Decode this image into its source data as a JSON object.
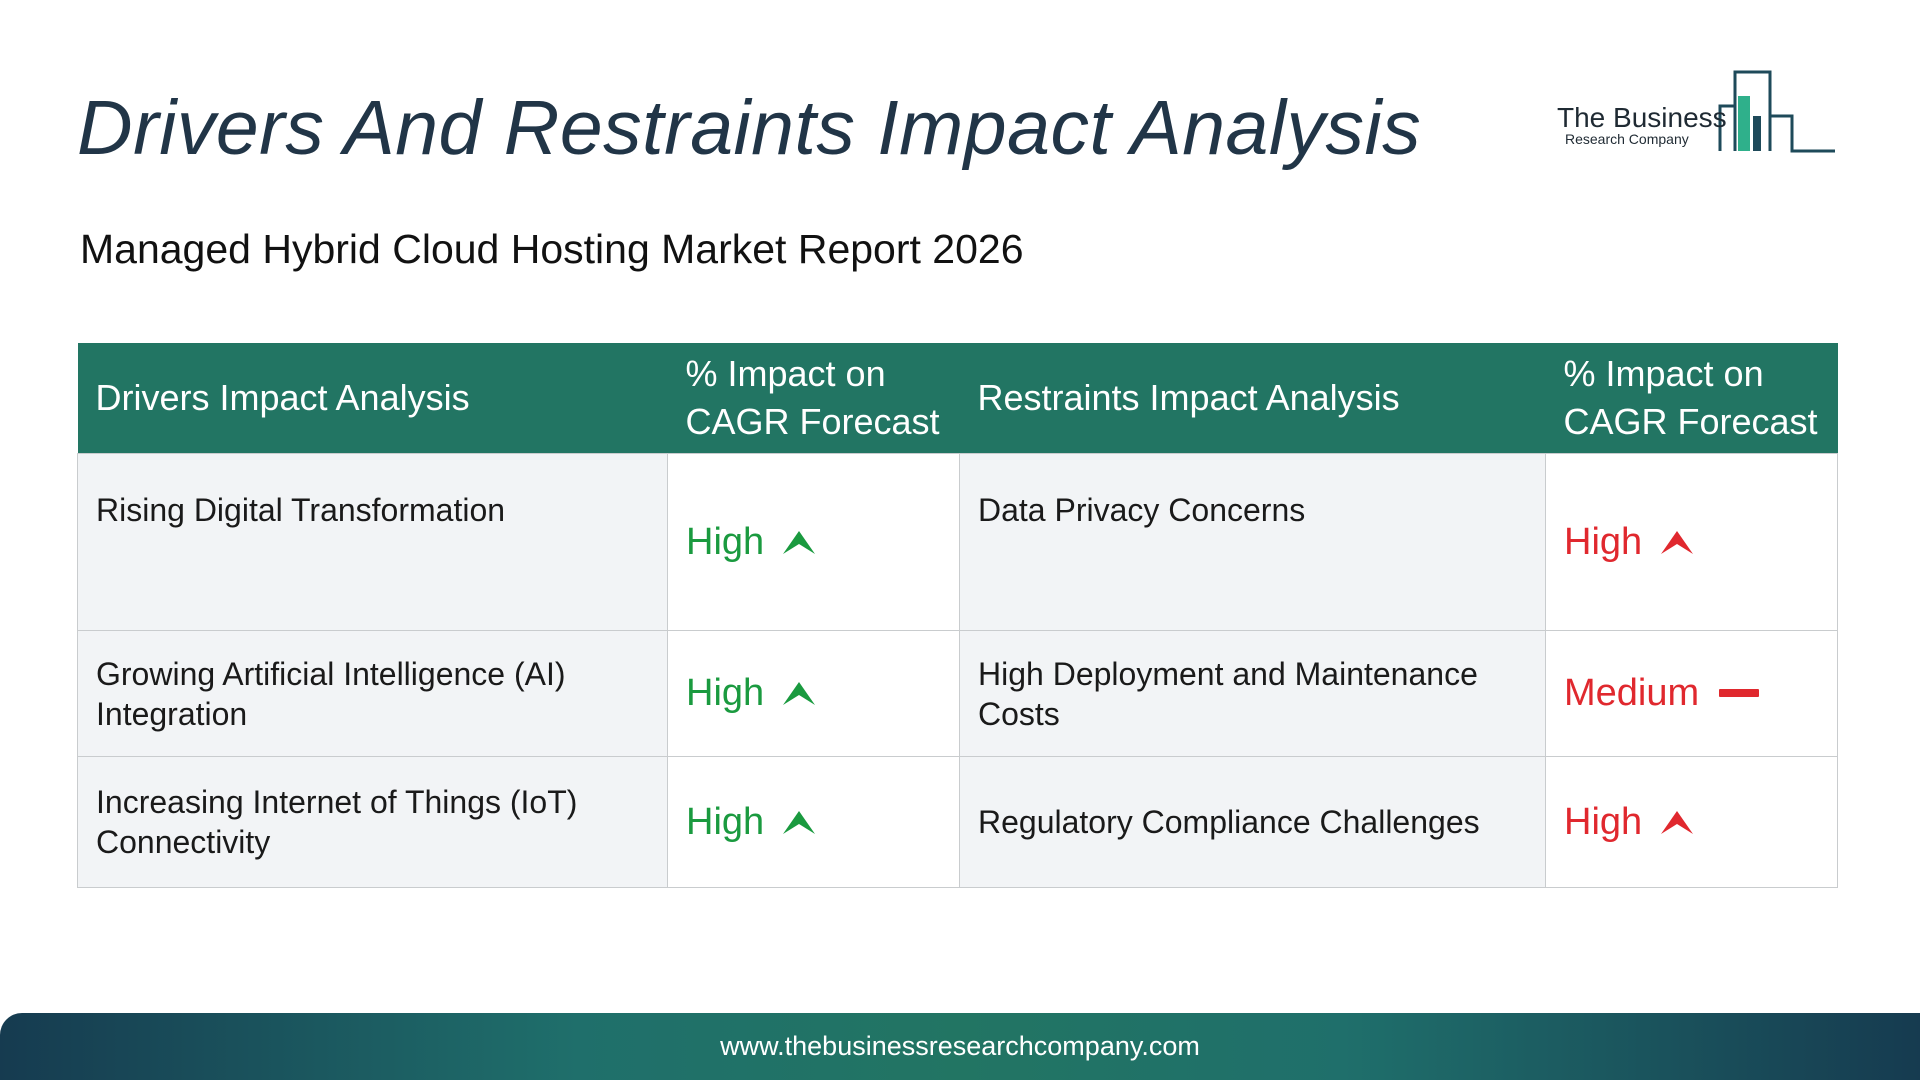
{
  "title": "Drivers And Restraints Impact Analysis",
  "subtitle": "Managed Hybrid Cloud Hosting Market Report 2026",
  "logo": {
    "line1": "The Business",
    "line2": "Research Company",
    "icon": "bar-building-logo-icon"
  },
  "table": {
    "headers": [
      "Drivers Impact Analysis",
      "% Impact on CAGR Forecast",
      "Restraints Impact Analysis",
      "% Impact on CAGR Forecast"
    ],
    "rows": [
      {
        "driver": "Rising Digital Transformation",
        "driver_impact": "High",
        "driver_trend": "up-arrow-icon",
        "restraint": "Data Privacy Concerns",
        "restraint_impact": "High",
        "restraint_trend": "up-arrow-icon"
      },
      {
        "driver": "Growing Artificial Intelligence (AI) Integration",
        "driver_impact": "High",
        "driver_trend": "up-arrow-icon",
        "restraint": "High Deployment and Maintenance Costs",
        "restraint_impact": "Medium",
        "restraint_trend": "dash-icon"
      },
      {
        "driver": "Increasing Internet of Things (IoT) Connectivity",
        "driver_impact": "High",
        "driver_trend": "up-arrow-icon",
        "restraint": "Regulatory Compliance Challenges",
        "restraint_impact": "High",
        "restraint_trend": "up-arrow-icon"
      }
    ]
  },
  "colors": {
    "header_bg": "#227563",
    "driver_impact": "#1a9a3f",
    "restraint_impact": "#e0282e",
    "title": "#213547"
  },
  "footer": {
    "url": "www.thebusinessresearchcompany.com"
  }
}
